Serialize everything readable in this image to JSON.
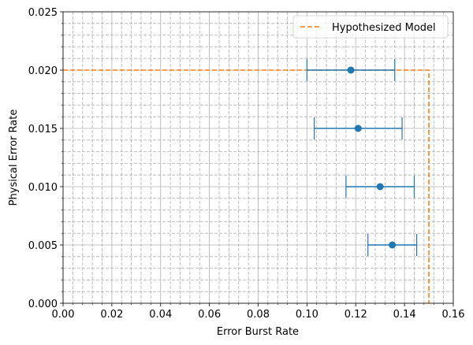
{
  "chart_data": {
    "type": "scatter",
    "title": "",
    "xlabel": "Error Burst Rate",
    "ylabel": "Physical Error Rate",
    "xlim": [
      0.0,
      0.16
    ],
    "ylim": [
      0.0,
      0.025
    ],
    "xticks": [
      0.0,
      0.02,
      0.04,
      0.06,
      0.08,
      0.1,
      0.12,
      0.14,
      0.16
    ],
    "xtick_labels": [
      "0.00",
      "0.02",
      "0.04",
      "0.06",
      "0.08",
      "0.10",
      "0.12",
      "0.14",
      "0.16"
    ],
    "yticks": [
      0.0,
      0.005,
      0.01,
      0.015,
      0.02,
      0.025
    ],
    "ytick_labels": [
      "0.000",
      "0.005",
      "0.010",
      "0.015",
      "0.020",
      "0.025"
    ],
    "grid": true,
    "minor_grid": true,
    "legend_position": "top-right",
    "series": [
      {
        "kind": "errorbar",
        "color": "#1f77b4",
        "points": [
          {
            "x": 0.118,
            "y": 0.02,
            "xerr_low": 0.1,
            "xerr_high": 0.136
          },
          {
            "x": 0.121,
            "y": 0.015,
            "xerr_low": 0.103,
            "xerr_high": 0.139
          },
          {
            "x": 0.13,
            "y": 0.01,
            "xerr_low": 0.116,
            "xerr_high": 0.144
          },
          {
            "x": 0.135,
            "y": 0.005,
            "xerr_low": 0.125,
            "xerr_high": 0.145
          }
        ]
      },
      {
        "name": "Hypothesized Model",
        "kind": "line",
        "style": "dashed",
        "color": "#ff7f0e",
        "x": [
          0.0,
          0.15,
          0.15
        ],
        "y": [
          0.02,
          0.02,
          0.0
        ]
      }
    ]
  }
}
